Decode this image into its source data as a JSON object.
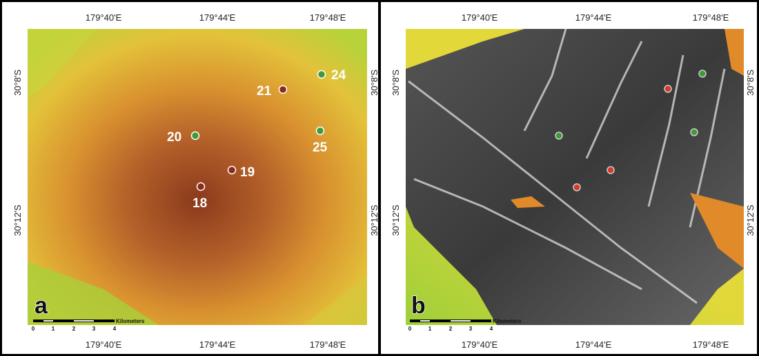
{
  "panels": [
    {
      "label": "a",
      "top_ticks": [
        "179°40'E",
        "179°44'E",
        "179°48'E"
      ],
      "bottom_ticks": [
        "179°40'E",
        "179°44'E",
        "179°48'E"
      ],
      "left_ticks": [
        "30°8'S",
        "30°12'S"
      ],
      "right_ticks": [
        "30°8'S",
        "30°12'S"
      ],
      "sites": [
        "24",
        "21",
        "20",
        "25",
        "19",
        "18"
      ],
      "scale_bar": {
        "ticks": [
          "0",
          "1",
          "2",
          "3",
          "4"
        ],
        "unit": "Kilometers"
      }
    },
    {
      "label": "b",
      "top_ticks": [
        "179°40'E",
        "179°44'E",
        "179°48'E"
      ],
      "bottom_ticks": [
        "179°40'E",
        "179°44'E",
        "179°48'E"
      ],
      "left_ticks": [
        "30°8'S",
        "30°12'S"
      ],
      "right_ticks": [
        "30°8'S",
        "30°12'S"
      ],
      "scale_bar": {
        "ticks": [
          "0",
          "1",
          "2",
          "3",
          "4"
        ],
        "unit": "Kilometers"
      }
    }
  ]
}
